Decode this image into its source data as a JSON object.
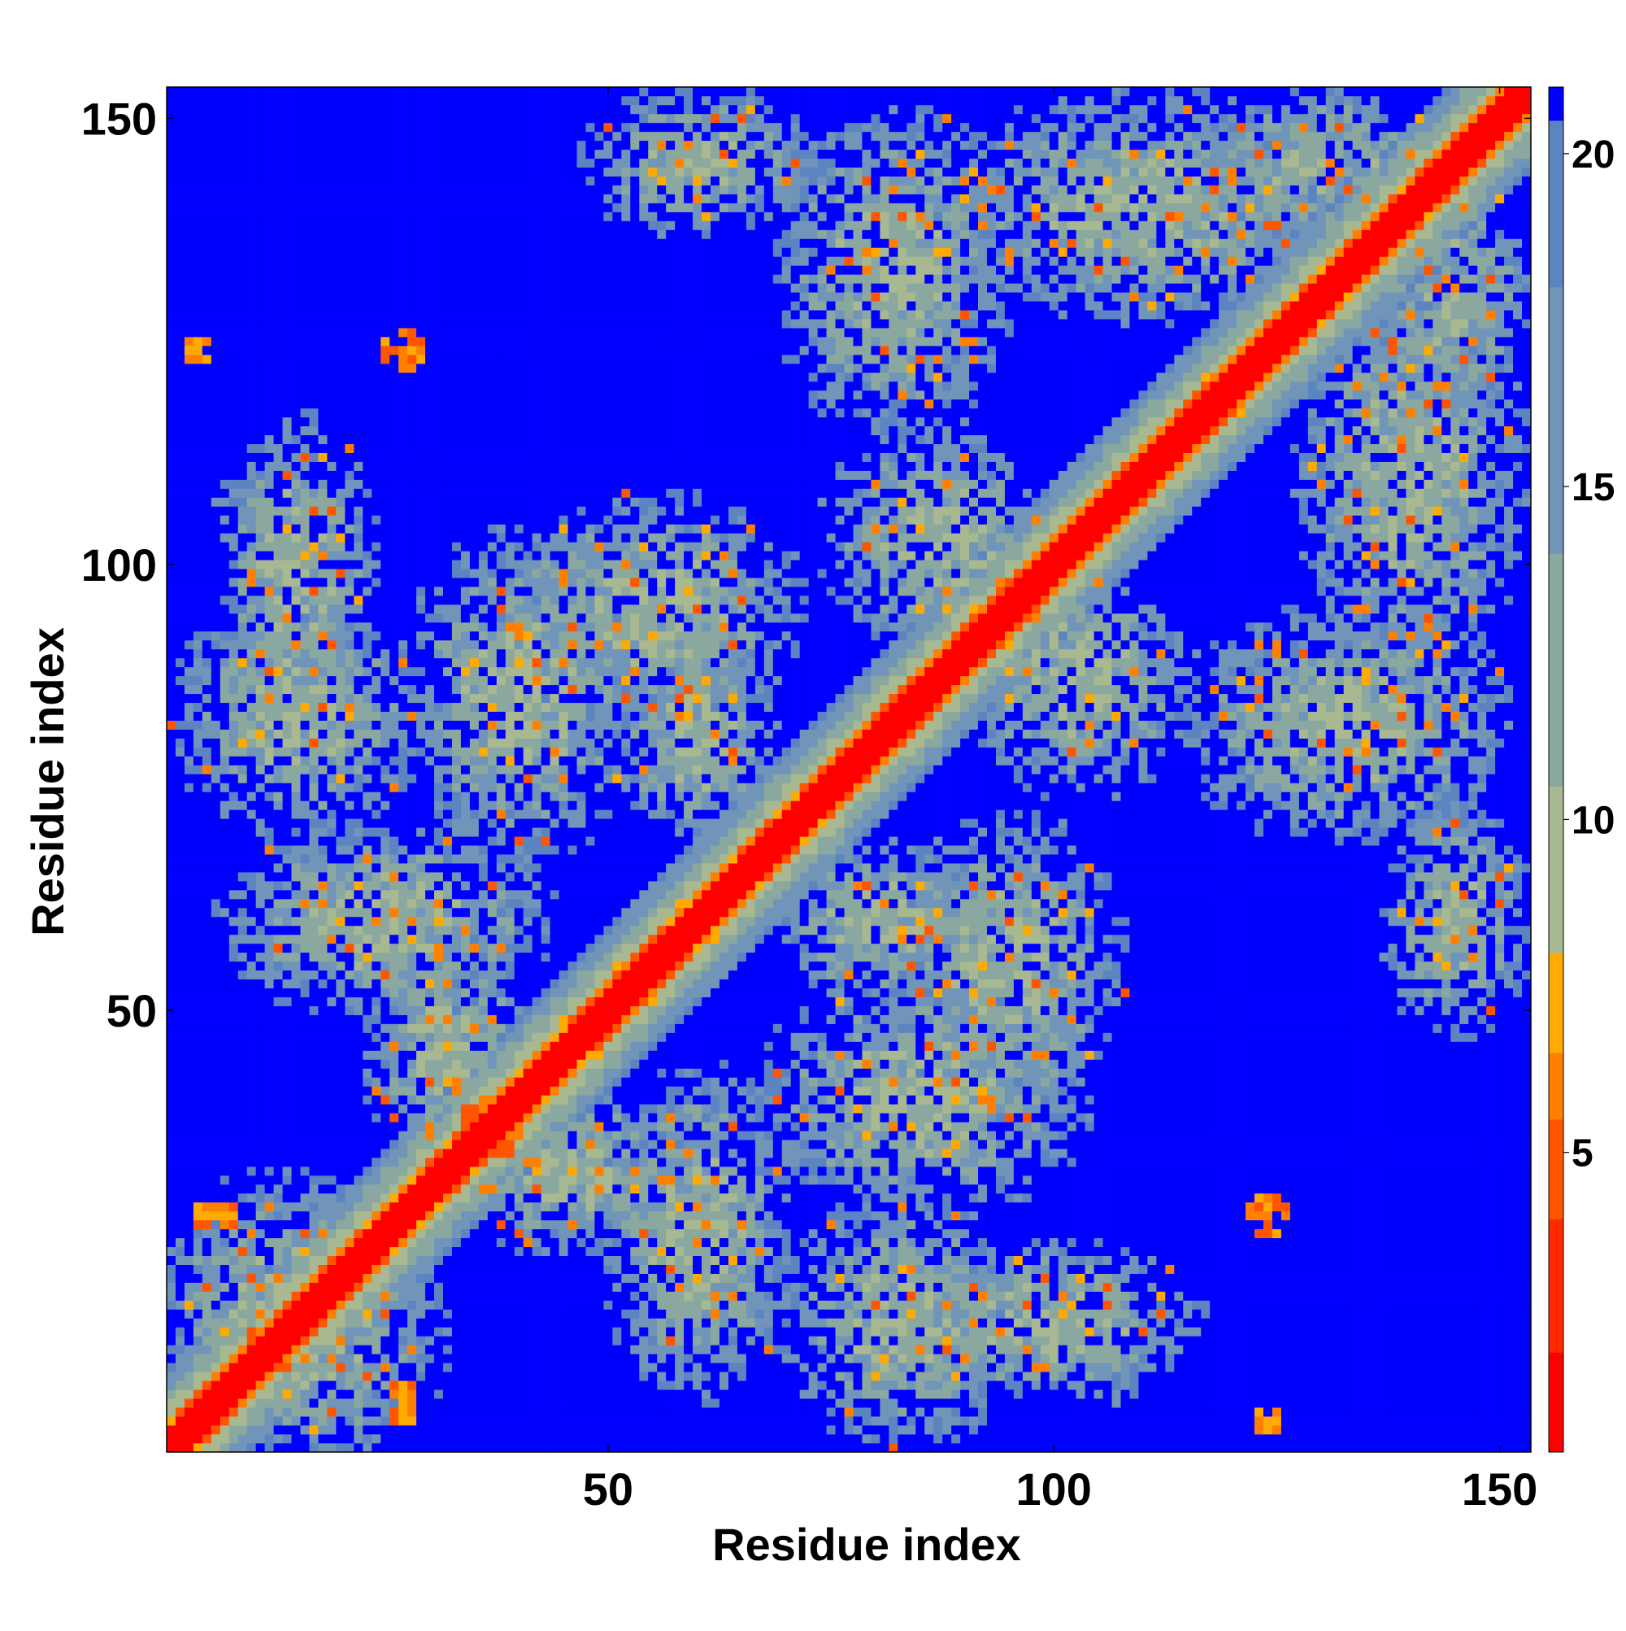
{
  "chart_data": {
    "type": "heatmap",
    "title": "",
    "xlabel": "Residue index",
    "ylabel": "Residue index",
    "x_range": [
      1,
      153
    ],
    "y_range": [
      1,
      153
    ],
    "x_ticks": [
      50,
      100,
      150
    ],
    "y_ticks": [
      50,
      100,
      150
    ],
    "colorbar": {
      "range": [
        0.5,
        21
      ],
      "ticks": [
        5,
        10,
        15,
        20
      ],
      "colors": [
        "#ff0000",
        "#ff2a00",
        "#ff5500",
        "#ff8000",
        "#ffaa00",
        "#a8b890",
        "#8aa8a0",
        "#7095b8",
        "#5b84c0",
        "#0000ff"
      ],
      "bounds": [
        0.5,
        2,
        4,
        5.5,
        6.5,
        8,
        10.5,
        14,
        18,
        20.5,
        21
      ]
    },
    "diagonal_band": {
      "core_width": 2,
      "orange_width": 3.5,
      "gradient_width": 9
    },
    "contact_patches": [
      {
        "x": 124.5,
        "y": 6,
        "rx": 2.5,
        "ry": 2.5,
        "value": 5
      },
      {
        "x": 123,
        "y": 26,
        "rx": 3,
        "ry": 3,
        "value": 5
      },
      {
        "x": 27,
        "y": 124,
        "rx": 2.5,
        "ry": 3,
        "value": 5
      },
      {
        "x": 4,
        "y": 124,
        "rx": 2,
        "ry": 2,
        "value": 5
      },
      {
        "x": 26,
        "y": 8,
        "rx": 2,
        "ry": 3,
        "value": 5
      },
      {
        "x": 6,
        "y": 27,
        "rx": 3,
        "ry": 2,
        "value": 5
      }
    ],
    "cluster_regions": [
      {
        "x": 55,
        "y": 95,
        "rx": 18,
        "ry": 14
      },
      {
        "x": 95,
        "y": 55,
        "rx": 14,
        "ry": 18
      },
      {
        "x": 87,
        "y": 103,
        "rx": 14,
        "ry": 14
      },
      {
        "x": 103,
        "y": 87,
        "rx": 14,
        "ry": 14
      },
      {
        "x": 110,
        "y": 140,
        "rx": 24,
        "ry": 14
      },
      {
        "x": 140,
        "y": 110,
        "rx": 14,
        "ry": 24
      },
      {
        "x": 82,
        "y": 133,
        "rx": 14,
        "ry": 20
      },
      {
        "x": 133,
        "y": 82,
        "rx": 20,
        "ry": 14
      },
      {
        "x": 60,
        "y": 145,
        "rx": 14,
        "ry": 9
      },
      {
        "x": 145,
        "y": 60,
        "rx": 9,
        "ry": 14
      },
      {
        "x": 25,
        "y": 60,
        "rx": 20,
        "ry": 12
      },
      {
        "x": 60,
        "y": 25,
        "rx": 12,
        "ry": 20
      },
      {
        "x": 40,
        "y": 85,
        "rx": 14,
        "ry": 20
      },
      {
        "x": 85,
        "y": 40,
        "rx": 20,
        "ry": 14
      },
      {
        "x": 45,
        "y": 32,
        "rx": 14,
        "ry": 10
      },
      {
        "x": 32,
        "y": 45,
        "rx": 10,
        "ry": 14
      },
      {
        "x": 15,
        "y": 15,
        "rx": 18,
        "ry": 18
      },
      {
        "x": 60,
        "y": 80,
        "rx": 10,
        "ry": 12
      },
      {
        "x": 80,
        "y": 60,
        "rx": 12,
        "ry": 10
      },
      {
        "x": 83,
        "y": 15,
        "rx": 14,
        "ry": 15
      },
      {
        "x": 15,
        "y": 83,
        "rx": 15,
        "ry": 14
      },
      {
        "x": 100,
        "y": 15,
        "rx": 18,
        "ry": 10
      },
      {
        "x": 15,
        "y": 100,
        "rx": 10,
        "ry": 18
      },
      {
        "x": 145,
        "y": 130,
        "rx": 9,
        "ry": 14
      },
      {
        "x": 130,
        "y": 145,
        "rx": 14,
        "ry": 9
      }
    ]
  }
}
